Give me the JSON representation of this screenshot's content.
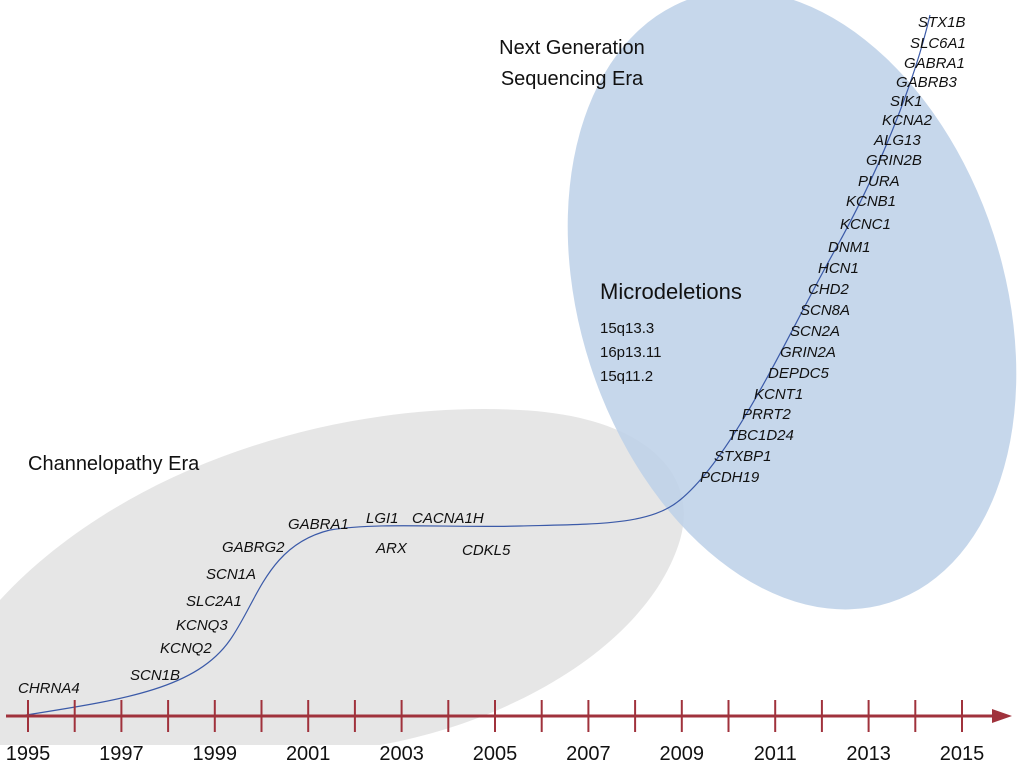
{
  "eras": {
    "ngs": {
      "line1": "Next Generation",
      "line2": "Sequencing Era",
      "color": "#bcd0e8"
    },
    "channelopathy": {
      "label": "Channelopathy Era",
      "color": "#e3e3e3"
    }
  },
  "microdeletions": {
    "title": "Microdeletions",
    "items": [
      "15q13.3",
      "16p13.11",
      "15q11.2"
    ]
  },
  "genes_below_curve": [
    "ARX",
    "CDKL5"
  ],
  "genes_on_curve": [
    "CHRNA4",
    "SCN1B",
    "KCNQ2",
    "KCNQ3",
    "SLC2A1",
    "SCN1A",
    "GABRG2",
    "GABRA1",
    "LGI1",
    "CACNA1H",
    "PCDH19",
    "STXBP1",
    "TBC1D24",
    "PRRT2",
    "KCNT1",
    "DEPDC5",
    "GRIN2A",
    "SCN2A",
    "SCN8A",
    "CHD2",
    "HCN1",
    "DNM1",
    "KCNC1",
    "KCNB1",
    "PURA",
    "GRIN2B",
    "ALG13",
    "KCNA2",
    "SIK1",
    "GABRB3",
    "GABRA1",
    "SLC6A1",
    "STX1B"
  ],
  "timeline": {
    "year_labels": [
      "1995",
      "1997",
      "1999",
      "2001",
      "2003",
      "2005",
      "2007",
      "2009",
      "2011",
      "2013",
      "2015"
    ],
    "axis_color": "#a0323c",
    "curve_color": "#3b5aa8"
  }
}
